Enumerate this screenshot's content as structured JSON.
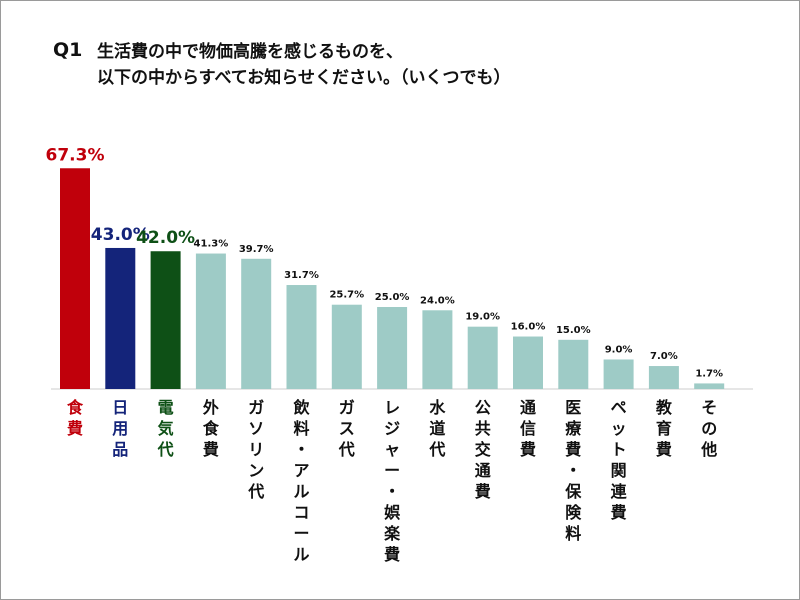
{
  "question": {
    "number": "Q1",
    "line1": "生活費の中で物価高騰を感じるものを、",
    "line2": "以下の中からすべてお知らせください。（いくつでも）"
  },
  "colors": {
    "highlight_1": "#c0000b",
    "highlight_2": "#14247a",
    "highlight_3": "#0e5016",
    "default_bar": "#9ecbc6",
    "baseline": "#cccccc"
  },
  "chart_data": {
    "type": "bar",
    "title": "",
    "xlabel": "",
    "ylabel": "",
    "ylim": [
      0,
      70
    ],
    "grid": false,
    "legend": "none",
    "categories": [
      "食費",
      "日用品",
      "電気代",
      "外食費",
      "ガソリン代",
      "飲料・アルコール",
      "ガス代",
      "レジャー・娯楽費",
      "水道代",
      "公共交通費",
      "通信費",
      "医療費・保険料",
      "ペット関連費",
      "教育費",
      "その他"
    ],
    "values": [
      67.3,
      43.0,
      42.0,
      41.3,
      39.7,
      31.7,
      25.7,
      25.0,
      24.0,
      19.0,
      16.0,
      15.0,
      9.0,
      7.0,
      1.7
    ],
    "value_labels": [
      "67.3%",
      "43.0%",
      "42.0%",
      "41.3%",
      "39.7%",
      "31.7%",
      "25.7%",
      "25.0%",
      "24.0%",
      "19.0%",
      "16.0%",
      "15.0%",
      "9.0%",
      "7.0%",
      "1.7%"
    ],
    "bar_colors": [
      "#c0000b",
      "#14247a",
      "#0e5016",
      "#9ecbc6",
      "#9ecbc6",
      "#9ecbc6",
      "#9ecbc6",
      "#9ecbc6",
      "#9ecbc6",
      "#9ecbc6",
      "#9ecbc6",
      "#9ecbc6",
      "#9ecbc6",
      "#9ecbc6",
      "#9ecbc6"
    ],
    "label_colors": [
      "#c0000b",
      "#14247a",
      "#0e5016",
      "#111111",
      "#111111",
      "#111111",
      "#111111",
      "#111111",
      "#111111",
      "#111111",
      "#111111",
      "#111111",
      "#111111",
      "#111111",
      "#111111"
    ],
    "emphasized_count": 3
  }
}
